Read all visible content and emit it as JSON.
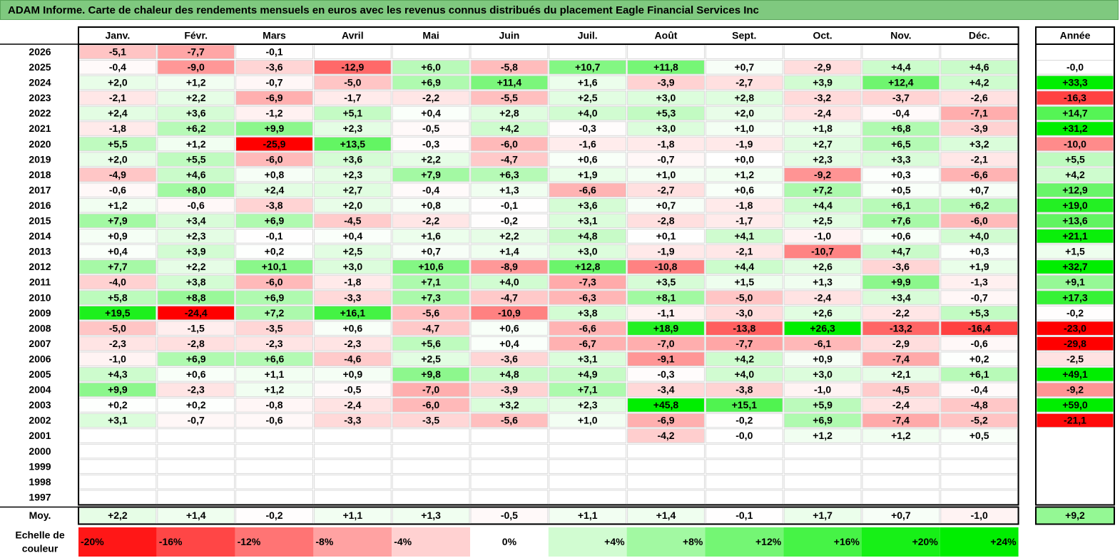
{
  "title": "ADAM Informe. Carte de chaleur des rendements mensuels en euros avec les revenus connus distribués du placement Eagle Financial Services Inc",
  "chart_data": {
    "type": "heatmap",
    "months": [
      "Janv.",
      "Févr.",
      "Mars",
      "Avril",
      "Mai",
      "Juin",
      "Juil.",
      "Août",
      "Sept.",
      "Oct.",
      "Nov.",
      "Déc."
    ],
    "year_header": "Année",
    "rows": [
      {
        "year": "2026",
        "values": [
          "-5,1",
          "-7,7",
          "-0,1",
          null,
          null,
          null,
          null,
          null,
          null,
          null,
          null,
          null
        ],
        "annual": null
      },
      {
        "year": "2025",
        "values": [
          "-0,4",
          "-9,0",
          "-3,6",
          "-12,9",
          "+6,0",
          "-5,8",
          "+10,7",
          "+11,8",
          "+0,7",
          "-2,9",
          "+4,4",
          "+4,6"
        ],
        "annual": "-0,0"
      },
      {
        "year": "2024",
        "values": [
          "+2,0",
          "+1,2",
          "-0,7",
          "-5,0",
          "+6,9",
          "+11,4",
          "+1,6",
          "-3,9",
          "-2,7",
          "+3,9",
          "+12,4",
          "+4,2"
        ],
        "annual": "+33,3"
      },
      {
        "year": "2023",
        "values": [
          "-2,1",
          "+2,2",
          "-6,9",
          "-1,7",
          "-2,2",
          "-5,5",
          "+2,5",
          "+3,0",
          "+2,8",
          "-3,2",
          "-3,7",
          "-2,6"
        ],
        "annual": "-16,3"
      },
      {
        "year": "2022",
        "values": [
          "+2,4",
          "+3,6",
          "-1,2",
          "+5,1",
          "+0,4",
          "+2,8",
          "+4,0",
          "+5,3",
          "+2,0",
          "-2,4",
          "-0,4",
          "-7,1"
        ],
        "annual": "+14,7"
      },
      {
        "year": "2021",
        "values": [
          "-1,8",
          "+6,2",
          "+9,9",
          "+2,3",
          "-0,5",
          "+4,2",
          "-0,3",
          "+3,0",
          "+1,0",
          "+1,8",
          "+6,8",
          "-3,9"
        ],
        "annual": "+31,2"
      },
      {
        "year": "2020",
        "values": [
          "+5,5",
          "+1,2",
          "-25,9",
          "+13,5",
          "-0,3",
          "-6,0",
          "-1,6",
          "-1,8",
          "-1,9",
          "+2,7",
          "+6,5",
          "+3,2"
        ],
        "annual": "-10,0"
      },
      {
        "year": "2019",
        "values": [
          "+2,0",
          "+5,5",
          "-6,0",
          "+3,6",
          "+2,2",
          "-4,7",
          "+0,6",
          "-0,7",
          "+0,0",
          "+2,3",
          "+3,3",
          "-2,1"
        ],
        "annual": "+5,5"
      },
      {
        "year": "2018",
        "values": [
          "-4,9",
          "+4,6",
          "+0,8",
          "+2,3",
          "+7,9",
          "+6,3",
          "+1,9",
          "+1,0",
          "+1,2",
          "-9,2",
          "+0,3",
          "-6,6"
        ],
        "annual": "+4,2"
      },
      {
        "year": "2017",
        "values": [
          "-0,6",
          "+8,0",
          "+2,4",
          "+2,7",
          "-0,4",
          "+1,3",
          "-6,6",
          "-2,7",
          "+0,6",
          "+7,2",
          "+0,5",
          "+0,7"
        ],
        "annual": "+12,9"
      },
      {
        "year": "2016",
        "values": [
          "+1,2",
          "-0,6",
          "-3,8",
          "+2,0",
          "+0,8",
          "-0,1",
          "+3,6",
          "+0,7",
          "-1,8",
          "+4,4",
          "+6,1",
          "+6,2"
        ],
        "annual": "+19,0"
      },
      {
        "year": "2015",
        "values": [
          "+7,9",
          "+3,4",
          "+6,9",
          "-4,5",
          "-2,2",
          "-0,2",
          "+3,1",
          "-2,8",
          "-1,7",
          "+2,5",
          "+7,6",
          "-6,0"
        ],
        "annual": "+13,6"
      },
      {
        "year": "2014",
        "values": [
          "+0,9",
          "+2,3",
          "-0,1",
          "+0,4",
          "+1,6",
          "+2,2",
          "+4,8",
          "+0,1",
          "+4,1",
          "-1,0",
          "+0,6",
          "+4,0"
        ],
        "annual": "+21,1"
      },
      {
        "year": "2013",
        "values": [
          "+0,4",
          "+3,9",
          "+0,2",
          "+2,5",
          "+0,7",
          "+1,4",
          "+3,0",
          "-1,9",
          "-2,1",
          "-10,7",
          "+4,7",
          "+0,3"
        ],
        "annual": "+1,5"
      },
      {
        "year": "2012",
        "values": [
          "+7,7",
          "+2,2",
          "+10,1",
          "+3,0",
          "+10,6",
          "-8,9",
          "+12,8",
          "-10,8",
          "+4,4",
          "+2,6",
          "-3,6",
          "+1,9"
        ],
        "annual": "+32,7"
      },
      {
        "year": "2011",
        "values": [
          "-4,0",
          "+3,8",
          "-6,0",
          "-1,8",
          "+7,1",
          "+4,0",
          "-7,3",
          "+3,5",
          "+1,5",
          "+1,3",
          "+9,9",
          "-1,3"
        ],
        "annual": "+9,1"
      },
      {
        "year": "2010",
        "values": [
          "+5,8",
          "+8,8",
          "+6,9",
          "-3,3",
          "+7,3",
          "-4,7",
          "-6,3",
          "+8,1",
          "-5,0",
          "-2,4",
          "+3,4",
          "-0,7"
        ],
        "annual": "+17,3"
      },
      {
        "year": "2009",
        "values": [
          "+19,5",
          "-24,4",
          "+7,2",
          "+16,1",
          "-5,6",
          "-10,9",
          "+3,8",
          "-1,1",
          "-3,0",
          "+2,6",
          "-2,2",
          "+5,3"
        ],
        "annual": "-0,2"
      },
      {
        "year": "2008",
        "values": [
          "-5,0",
          "-1,5",
          "-3,5",
          "+0,6",
          "-4,7",
          "+0,6",
          "-6,6",
          "+18,9",
          "-13,8",
          "+26,3",
          "-13,2",
          "-16,4"
        ],
        "annual": "-23,0"
      },
      {
        "year": "2007",
        "values": [
          "-2,3",
          "-2,8",
          "-2,3",
          "-2,3",
          "+5,6",
          "+0,4",
          "-6,7",
          "-7,0",
          "-7,7",
          "-6,1",
          "-2,9",
          "-0,6"
        ],
        "annual": "-29,8"
      },
      {
        "year": "2006",
        "values": [
          "-1,0",
          "+6,9",
          "+6,6",
          "-4,6",
          "+2,5",
          "-3,6",
          "+3,1",
          "-9,1",
          "+4,2",
          "+0,9",
          "-7,4",
          "+0,2"
        ],
        "annual": "-2,5"
      },
      {
        "year": "2005",
        "values": [
          "+4,3",
          "+0,6",
          "+1,1",
          "+0,9",
          "+9,8",
          "+4,8",
          "+4,9",
          "-0,3",
          "+4,0",
          "+3,0",
          "+2,1",
          "+6,1"
        ],
        "annual": "+49,1"
      },
      {
        "year": "2004",
        "values": [
          "+9,9",
          "-2,3",
          "+1,2",
          "-0,5",
          "-7,0",
          "-3,9",
          "+7,1",
          "-3,4",
          "-3,8",
          "-1,0",
          "-4,5",
          "-0,4"
        ],
        "annual": "-9,2"
      },
      {
        "year": "2003",
        "values": [
          "+0,2",
          "+0,2",
          "-0,8",
          "-2,4",
          "-6,0",
          "+3,2",
          "+2,3",
          "+45,8",
          "+15,1",
          "+5,9",
          "-2,4",
          "-4,8"
        ],
        "annual": "+59,0"
      },
      {
        "year": "2002",
        "values": [
          "+3,1",
          "-0,7",
          "-0,6",
          "-3,3",
          "-3,5",
          "-5,6",
          "+1,0",
          "-6,9",
          "-0,2",
          "+6,9",
          "-7,4",
          "-5,2"
        ],
        "annual": "-21,1"
      },
      {
        "year": "2001",
        "values": [
          null,
          null,
          null,
          null,
          null,
          null,
          null,
          "-4,2",
          "-0,0",
          "+1,2",
          "+1,2",
          "+0,5"
        ],
        "annual": null
      },
      {
        "year": "2000",
        "values": [
          null,
          null,
          null,
          null,
          null,
          null,
          null,
          null,
          null,
          null,
          null,
          null
        ],
        "annual": null
      },
      {
        "year": "1999",
        "values": [
          null,
          null,
          null,
          null,
          null,
          null,
          null,
          null,
          null,
          null,
          null,
          null
        ],
        "annual": null
      },
      {
        "year": "1998",
        "values": [
          null,
          null,
          null,
          null,
          null,
          null,
          null,
          null,
          null,
          null,
          null,
          null
        ],
        "annual": null
      },
      {
        "year": "1997",
        "values": [
          null,
          null,
          null,
          null,
          null,
          null,
          null,
          null,
          null,
          null,
          null,
          null
        ],
        "annual": null
      }
    ],
    "average": {
      "label": "Moy.",
      "values": [
        "+2,2",
        "+1,4",
        "-0,2",
        "+1,1",
        "+1,3",
        "-0,5",
        "+1,1",
        "+1,4",
        "-0,1",
        "+1,7",
        "+0,7",
        "-1,0"
      ],
      "annual": "+9,2"
    },
    "scale": {
      "label_line1": "Echelle de",
      "label_line2": "couleur",
      "steps": [
        "-20%",
        "-16%",
        "-12%",
        "-8%",
        "-4%",
        "0%",
        "+4%",
        "+8%",
        "+12%",
        "+16%",
        "+20%",
        "+24%"
      ]
    },
    "colors": {
      "negative": "#ff0000",
      "positive": "#00ee00",
      "neutral": "#ffffff",
      "title_bar": "#7fc97f"
    }
  }
}
